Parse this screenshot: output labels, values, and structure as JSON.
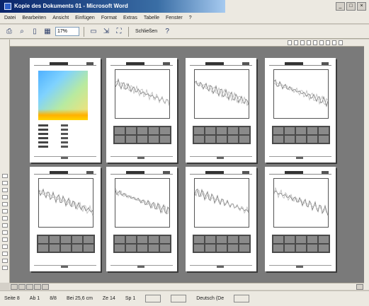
{
  "window": {
    "title": "Kopie des Dokuments 01 - Microsoft Word",
    "controls": [
      "_",
      "□",
      "×"
    ]
  },
  "menu": {
    "items": [
      "Datei",
      "Bearbeiten",
      "Ansicht",
      "Einfügen",
      "Format",
      "Extras",
      "Tabelle",
      "Fenster",
      "?"
    ]
  },
  "toolbar": {
    "zoom": "17%",
    "close_label": "Schließen"
  },
  "status": {
    "page": "Seite 8",
    "section": "Ab 1",
    "pages": "8/8",
    "position": "Bei 25,6 cm",
    "line": "Ze 14",
    "column": "Sp 1",
    "language": "Deutsch (De"
  },
  "icons": {
    "print": "printer-icon",
    "magnifier": "magnifier-icon",
    "one_page": "one-page-icon",
    "multi_page": "multiple-pages-icon",
    "ruler": "ruler-icon",
    "shrink": "shrink-to-fit-icon",
    "full_screen": "full-screen-icon",
    "help": "help-icon"
  },
  "pages": [
    {
      "kind": "heatmap"
    },
    {
      "kind": "plot"
    },
    {
      "kind": "plot"
    },
    {
      "kind": "plot"
    },
    {
      "kind": "plot"
    },
    {
      "kind": "plot"
    },
    {
      "kind": "plot"
    },
    {
      "kind": "plot"
    }
  ]
}
